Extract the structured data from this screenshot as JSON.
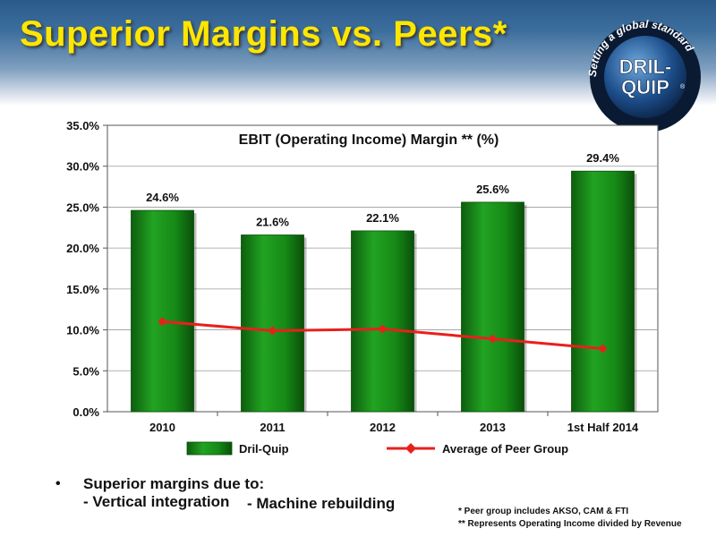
{
  "slide": {
    "title": "Superior Margins vs. Peers*",
    "logo": {
      "ring_text": "Setting a global standard",
      "word1": "DRIL-",
      "word2": "QUIP",
      "mark": "®"
    },
    "bullets": {
      "marker": "•",
      "heading": "Superior margins due to:",
      "item1": "- Vertical integration",
      "item2": "- Machine rebuilding"
    },
    "footnotes": [
      "*  Peer group includes  AKSO, CAM & FTI",
      "** Represents Operating Income divided by Revenue"
    ]
  },
  "chart_data": {
    "type": "bar",
    "title": "EBIT (Operating Income) Margin ** (%)",
    "categories": [
      "2010",
      "2011",
      "2012",
      "2013",
      "1st Half 2014"
    ],
    "series": [
      {
        "name": "Dril-Quip",
        "type": "bar",
        "values": [
          24.6,
          21.6,
          22.1,
          25.6,
          29.4
        ],
        "labels": [
          "24.6%",
          "21.6%",
          "22.1%",
          "25.6%",
          "29.4%"
        ],
        "color": "#1a8a1a"
      },
      {
        "name": "Average of Peer Group",
        "type": "line",
        "values": [
          11.0,
          9.9,
          10.1,
          8.9,
          7.7
        ],
        "color": "#e8201c"
      }
    ],
    "ylim": [
      0,
      35
    ],
    "yticks": [
      "0.0%",
      "5.0%",
      "10.0%",
      "15.0%",
      "20.0%",
      "25.0%",
      "30.0%",
      "35.0%"
    ],
    "grid": true,
    "legend": "bottom"
  }
}
